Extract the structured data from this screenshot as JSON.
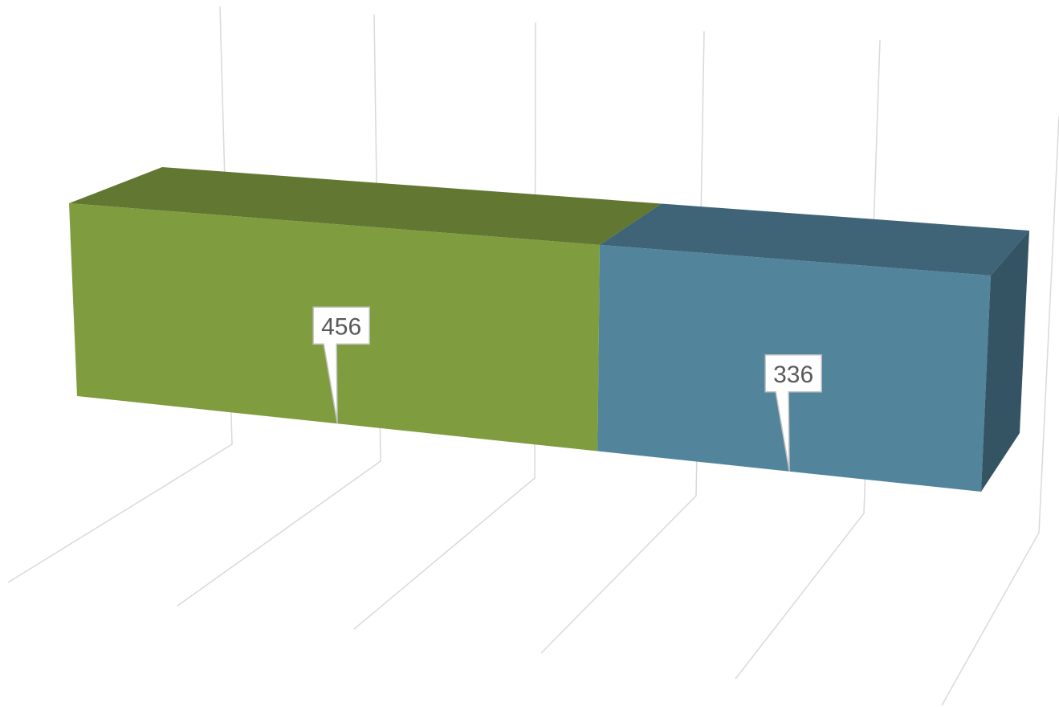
{
  "chart_data": {
    "type": "bar",
    "subtype": "3d-stacked-bar",
    "title": "",
    "xlabel": "",
    "ylabel": "",
    "categories": [
      ""
    ],
    "series": [
      {
        "values": [
          456
        ],
        "color": "#7f9c3e",
        "top_color": "#627832",
        "side_color": "#5f7a30"
      },
      {
        "values": [
          336
        ],
        "color": "#52849c",
        "top_color": "#3f6477",
        "side_color": "#345463"
      }
    ],
    "data_labels": [
      "456",
      "336"
    ],
    "grid": true,
    "legend": "none"
  }
}
